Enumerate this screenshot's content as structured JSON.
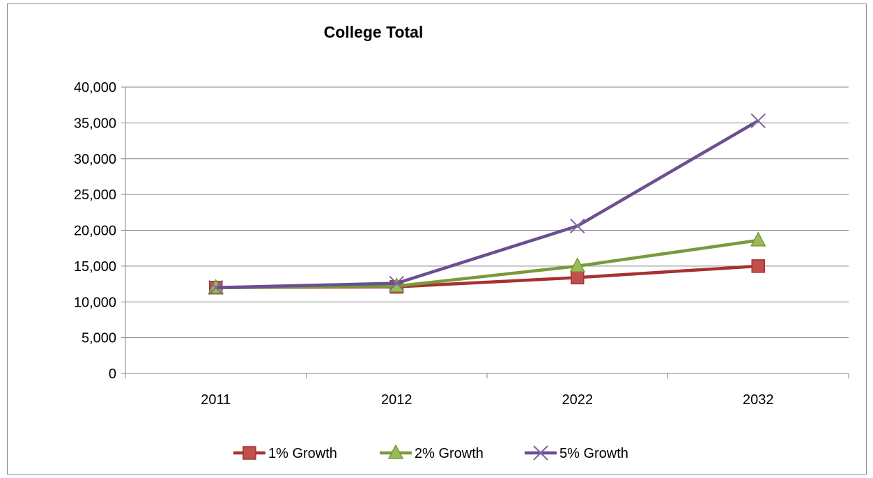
{
  "chart_data": {
    "type": "line",
    "title": "College Total",
    "xlabel": "",
    "ylabel": "",
    "categories": [
      "2011",
      "2012",
      "2022",
      "2032"
    ],
    "ylim": [
      0,
      40000
    ],
    "yticks": [
      0,
      5000,
      10000,
      15000,
      20000,
      25000,
      30000,
      35000,
      40000
    ],
    "ytick_labels": [
      "0",
      "5,000",
      "10,000",
      "15,000",
      "20,000",
      "25,000",
      "30,000",
      "35,000",
      "40,000"
    ],
    "grid": true,
    "legend_position": "bottom",
    "series": [
      {
        "name": "1% Growth",
        "values": [
          12000,
          12100,
          13400,
          15000
        ],
        "color": "#c0504d",
        "line_color": "#a6322f",
        "marker": "square"
      },
      {
        "name": "2% Growth",
        "values": [
          12000,
          12200,
          15000,
          18600
        ],
        "color": "#9bbb59",
        "line_color": "#7a9a3a",
        "marker": "triangle"
      },
      {
        "name": "5% Growth",
        "values": [
          12000,
          12600,
          20600,
          35300
        ],
        "color": "#8064a2",
        "line_color": "#6b4f91",
        "marker": "x"
      }
    ]
  }
}
